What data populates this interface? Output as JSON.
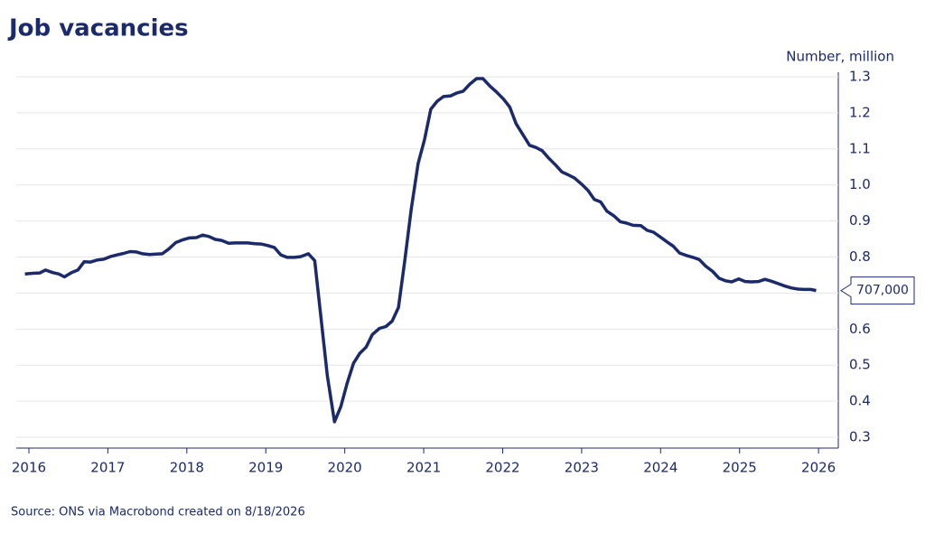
{
  "chart_data": {
    "type": "line",
    "title": "Job vacancies",
    "y_label": "Number, million",
    "source": "Source: ONS via Macrobond created on 8/18/2026",
    "xlim": [
      2015.84,
      2026.25
    ],
    "xticks": [
      2016,
      2017,
      2018,
      2019,
      2020,
      2021,
      2022,
      2023,
      2024,
      2025,
      2026
    ],
    "ylim": [
      0.27,
      1.32
    ],
    "yticks": [
      0.3,
      0.4,
      0.5,
      0.6,
      0.7,
      0.8,
      0.9,
      {
        "value": 1,
        "label": "1.0"
      },
      1.1,
      1.2,
      1.3
    ],
    "grid": true,
    "series": [
      {
        "name": "Job vacancies",
        "color": "#1b2a6b",
        "x": [
          2015.95,
          2016.05,
          2016.14,
          2016.21,
          2016.3,
          2016.38,
          2016.45,
          2016.54,
          2016.62,
          2016.7,
          2016.78,
          2016.87,
          2016.95,
          2017.03,
          2017.12,
          2017.2,
          2017.28,
          2017.36,
          2017.44,
          2017.53,
          2017.61,
          2017.69,
          2017.77,
          2017.86,
          2017.95,
          2018.03,
          2018.12,
          2018.2,
          2018.28,
          2018.36,
          2018.44,
          2018.53,
          2018.61,
          2018.69,
          2018.77,
          2018.86,
          2018.94,
          2019.02,
          2019.11,
          2019.19,
          2019.27,
          2019.36,
          2019.44,
          2019.54,
          2019.62,
          2019.7,
          2019.78,
          2019.87,
          2019.95,
          2020.03,
          2020.11,
          2020.19,
          2020.27,
          2020.35,
          2020.44,
          2020.52,
          2020.6,
          2020.68,
          2020.76,
          2020.84,
          2020.93,
          2021.01,
          2021.09,
          2021.17,
          2021.25,
          2021.34,
          2021.42,
          2021.5,
          2021.58,
          2021.67,
          2021.75,
          2021.84,
          2021.92,
          2022.01,
          2022.09,
          2022.17,
          2022.26,
          2022.34,
          2022.42,
          2022.5,
          2022.58,
          2022.67,
          2022.75,
          2022.83,
          2022.91,
          2023.0,
          2023.08,
          2023.16,
          2023.24,
          2023.32,
          2023.41,
          2023.49,
          2023.57,
          2023.65,
          2023.75,
          2023.83,
          2023.91,
          2024.0,
          2024.08,
          2024.16,
          2024.24,
          2024.33,
          2024.41,
          2024.49,
          2024.57,
          2024.66,
          2024.74,
          2024.82,
          2024.9,
          2024.99,
          2025.07,
          2025.15,
          2025.24,
          2025.32,
          2025.4,
          2025.49,
          2025.58,
          2025.66,
          2025.74,
          2025.82,
          2025.9,
          2025.97
        ],
        "values": [
          0.753,
          0.755,
          0.756,
          0.764,
          0.757,
          0.753,
          0.745,
          0.757,
          0.764,
          0.787,
          0.786,
          0.792,
          0.794,
          0.801,
          0.806,
          0.81,
          0.815,
          0.814,
          0.809,
          0.807,
          0.808,
          0.809,
          0.822,
          0.84,
          0.848,
          0.853,
          0.854,
          0.861,
          0.857,
          0.849,
          0.846,
          0.838,
          0.839,
          0.839,
          0.839,
          0.837,
          0.836,
          0.832,
          0.826,
          0.806,
          0.799,
          0.799,
          0.801,
          0.809,
          0.79,
          0.63,
          0.47,
          0.343,
          0.385,
          0.45,
          0.505,
          0.533,
          0.55,
          0.585,
          0.602,
          0.607,
          0.622,
          0.66,
          0.79,
          0.93,
          1.06,
          1.125,
          1.21,
          1.232,
          1.245,
          1.247,
          1.255,
          1.26,
          1.279,
          1.295,
          1.295,
          1.274,
          1.258,
          1.238,
          1.216,
          1.17,
          1.138,
          1.11,
          1.104,
          1.095,
          1.075,
          1.055,
          1.036,
          1.028,
          1.019,
          1.002,
          0.985,
          0.96,
          0.953,
          0.927,
          0.914,
          0.898,
          0.894,
          0.888,
          0.887,
          0.874,
          0.869,
          0.855,
          0.842,
          0.83,
          0.811,
          0.804,
          0.799,
          0.793,
          0.775,
          0.76,
          0.741,
          0.734,
          0.731,
          0.739,
          0.732,
          0.731,
          0.732,
          0.738,
          0.733,
          0.726,
          0.719,
          0.714,
          0.711,
          0.71,
          0.71,
          0.707
        ]
      }
    ],
    "annotations": [
      {
        "label": "707,000",
        "value": 0.707
      }
    ]
  }
}
